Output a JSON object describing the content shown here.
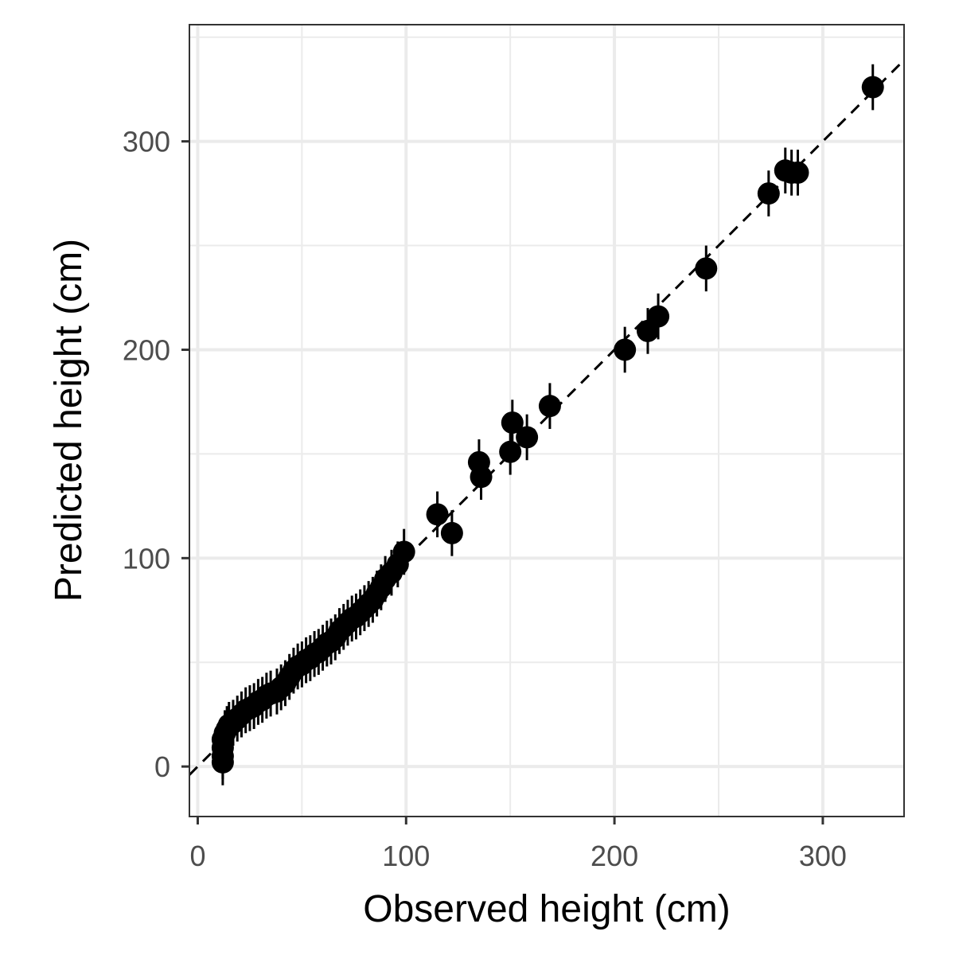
{
  "chart_data": {
    "type": "scatter",
    "title": "",
    "xlabel": "Observed height (cm)",
    "ylabel": "Predicted height (cm)",
    "xlim": [
      -4,
      339
    ],
    "ylim": [
      -24,
      356
    ],
    "x_ticks": [
      0,
      100,
      200,
      300
    ],
    "y_ticks": [
      0,
      100,
      200,
      300
    ],
    "x_tick_labels": [
      "0",
      "100",
      "200",
      "300"
    ],
    "y_tick_labels": [
      "0",
      "100",
      "200",
      "300"
    ],
    "grid": true,
    "reference_line": {
      "style": "dashed",
      "slope": 1,
      "intercept": 0
    },
    "series": [
      {
        "error_bar_halfwidth": 11,
        "points": [
          {
            "x": 12,
            "y": 2
          },
          {
            "x": 12,
            "y": 5
          },
          {
            "x": 12,
            "y": 9
          },
          {
            "x": 12,
            "y": 13
          },
          {
            "x": 13,
            "y": 16
          },
          {
            "x": 14,
            "y": 18
          },
          {
            "x": 15,
            "y": 20
          },
          {
            "x": 17,
            "y": 21
          },
          {
            "x": 19,
            "y": 23
          },
          {
            "x": 21,
            "y": 25
          },
          {
            "x": 23,
            "y": 27
          },
          {
            "x": 25,
            "y": 28
          },
          {
            "x": 27,
            "y": 29
          },
          {
            "x": 29,
            "y": 31
          },
          {
            "x": 31,
            "y": 32
          },
          {
            "x": 33,
            "y": 34
          },
          {
            "x": 35,
            "y": 35
          },
          {
            "x": 38,
            "y": 36
          },
          {
            "x": 40,
            "y": 38
          },
          {
            "x": 42,
            "y": 40
          },
          {
            "x": 44,
            "y": 43
          },
          {
            "x": 46,
            "y": 46
          },
          {
            "x": 48,
            "y": 48
          },
          {
            "x": 50,
            "y": 49
          },
          {
            "x": 52,
            "y": 51
          },
          {
            "x": 54,
            "y": 52
          },
          {
            "x": 56,
            "y": 54
          },
          {
            "x": 58,
            "y": 55
          },
          {
            "x": 60,
            "y": 57
          },
          {
            "x": 62,
            "y": 59
          },
          {
            "x": 64,
            "y": 60
          },
          {
            "x": 66,
            "y": 62
          },
          {
            "x": 68,
            "y": 65
          },
          {
            "x": 70,
            "y": 67
          },
          {
            "x": 72,
            "y": 69
          },
          {
            "x": 74,
            "y": 71
          },
          {
            "x": 76,
            "y": 72
          },
          {
            "x": 78,
            "y": 74
          },
          {
            "x": 80,
            "y": 76
          },
          {
            "x": 82,
            "y": 78
          },
          {
            "x": 84,
            "y": 80
          },
          {
            "x": 86,
            "y": 83
          },
          {
            "x": 88,
            "y": 86
          },
          {
            "x": 90,
            "y": 90
          },
          {
            "x": 93,
            "y": 93
          },
          {
            "x": 96,
            "y": 97
          },
          {
            "x": 99,
            "y": 103
          },
          {
            "x": 115,
            "y": 121
          },
          {
            "x": 122,
            "y": 112
          },
          {
            "x": 135,
            "y": 146
          },
          {
            "x": 136,
            "y": 139
          },
          {
            "x": 150,
            "y": 151
          },
          {
            "x": 151,
            "y": 165
          },
          {
            "x": 158,
            "y": 158
          },
          {
            "x": 169,
            "y": 173
          },
          {
            "x": 205,
            "y": 200
          },
          {
            "x": 216,
            "y": 209
          },
          {
            "x": 221,
            "y": 216
          },
          {
            "x": 244,
            "y": 239
          },
          {
            "x": 274,
            "y": 275
          },
          {
            "x": 282,
            "y": 286
          },
          {
            "x": 285,
            "y": 285
          },
          {
            "x": 288,
            "y": 285
          },
          {
            "x": 324,
            "y": 326
          }
        ]
      }
    ]
  }
}
